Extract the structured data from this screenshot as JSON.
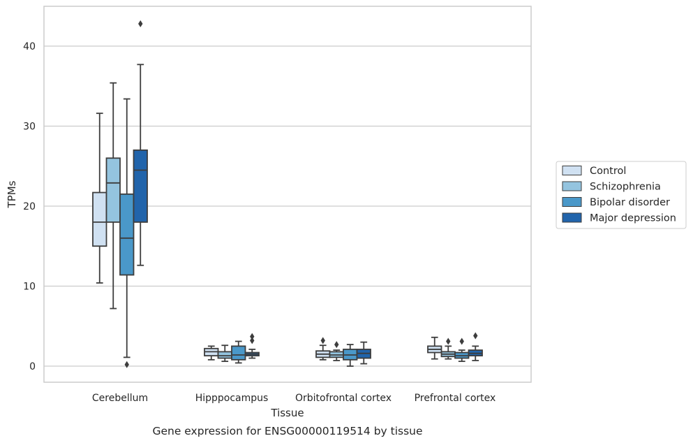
{
  "caption": "Gene expression for ENSG00000119514 by tissue",
  "chart_data": {
    "type": "box",
    "xlabel": "Tissue",
    "ylabel": "TPMs",
    "ylim": [
      -2,
      45
    ],
    "yticks": [
      0,
      10,
      20,
      30,
      40
    ],
    "grid": true,
    "legend_position": "right",
    "categories": [
      "Cerebellum",
      "Hipppocampus",
      "Orbitofrontal cortex",
      "Prefrontal cortex"
    ],
    "series": [
      {
        "name": "Control",
        "color": "#d0e1f2",
        "boxes": [
          {
            "whislo": 10.4,
            "q1": 15.0,
            "med": 18.0,
            "q3": 21.7,
            "whishi": 31.6,
            "fliers": []
          },
          {
            "whislo": 0.8,
            "q1": 1.3,
            "med": 1.8,
            "q3": 2.2,
            "whishi": 2.5,
            "fliers": []
          },
          {
            "whislo": 0.8,
            "q1": 1.1,
            "med": 1.5,
            "q3": 1.9,
            "whishi": 2.6,
            "fliers": [
              3.2
            ]
          },
          {
            "whislo": 0.9,
            "q1": 1.7,
            "med": 2.1,
            "q3": 2.5,
            "whishi": 3.6,
            "fliers": []
          }
        ]
      },
      {
        "name": "Schizophrenia",
        "color": "#94c4df",
        "boxes": [
          {
            "whislo": 7.2,
            "q1": 18.0,
            "med": 22.9,
            "q3": 26.0,
            "whishi": 35.4,
            "fliers": []
          },
          {
            "whislo": 0.6,
            "q1": 1.0,
            "med": 1.3,
            "q3": 1.8,
            "whishi": 2.6,
            "fliers": []
          },
          {
            "whislo": 0.7,
            "q1": 1.1,
            "med": 1.4,
            "q3": 1.8,
            "whishi": 2.0,
            "fliers": [
              2.7
            ]
          },
          {
            "whislo": 0.9,
            "q1": 1.2,
            "med": 1.5,
            "q3": 1.8,
            "whishi": 2.5,
            "fliers": [
              3.1
            ]
          }
        ]
      },
      {
        "name": "Bipolar disorder",
        "color": "#4a98c9",
        "boxes": [
          {
            "whislo": 1.1,
            "q1": 11.4,
            "med": 16.0,
            "q3": 21.5,
            "whishi": 33.4,
            "fliers": [
              0.2
            ]
          },
          {
            "whislo": 0.4,
            "q1": 0.8,
            "med": 1.4,
            "q3": 2.5,
            "whishi": 3.1,
            "fliers": []
          },
          {
            "whislo": 0.0,
            "q1": 0.8,
            "med": 1.4,
            "q3": 2.1,
            "whishi": 2.7,
            "fliers": []
          },
          {
            "whislo": 0.6,
            "q1": 1.0,
            "med": 1.3,
            "q3": 1.7,
            "whishi": 2.0,
            "fliers": [
              3.1
            ]
          }
        ]
      },
      {
        "name": "Major depression",
        "color": "#2164ab",
        "boxes": [
          {
            "whislo": 12.6,
            "q1": 18.0,
            "med": 24.5,
            "q3": 27.0,
            "whishi": 37.7,
            "fliers": [
              42.8
            ]
          },
          {
            "whislo": 1.0,
            "q1": 1.3,
            "med": 1.5,
            "q3": 1.7,
            "whishi": 2.1,
            "fliers": [
              3.2,
              3.7
            ]
          },
          {
            "whislo": 0.3,
            "q1": 1.0,
            "med": 1.6,
            "q3": 2.1,
            "whishi": 3.0,
            "fliers": []
          },
          {
            "whislo": 0.7,
            "q1": 1.3,
            "med": 1.6,
            "q3": 2.0,
            "whishi": 2.5,
            "fliers": [
              3.8
            ]
          }
        ]
      }
    ]
  }
}
